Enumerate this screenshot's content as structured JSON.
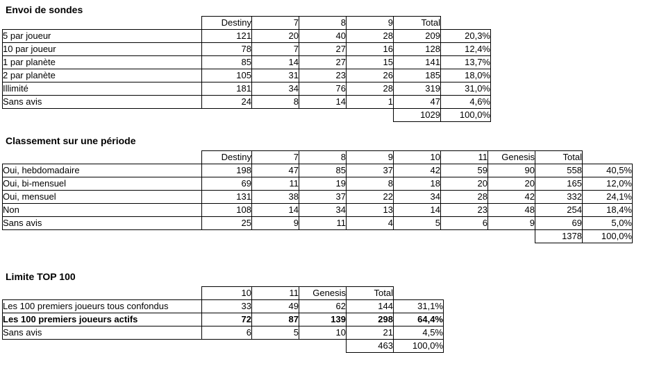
{
  "page": {
    "background_color": "#ffffff",
    "text_color": "#000000",
    "border_color": "#000000"
  },
  "tables": [
    {
      "title": "Envoi de sondes",
      "headers": [
        "Destiny",
        "7",
        "8",
        "9",
        "Total"
      ],
      "rows": [
        {
          "label": "5 par joueur",
          "values": [
            "121",
            "20",
            "40",
            "28",
            "209"
          ],
          "pct": "20,3%",
          "bold": false
        },
        {
          "label": "10 par joueur",
          "values": [
            "78",
            "7",
            "27",
            "16",
            "128"
          ],
          "pct": "12,4%",
          "bold": false
        },
        {
          "label": "1 par planète",
          "values": [
            "85",
            "14",
            "27",
            "15",
            "141"
          ],
          "pct": "13,7%",
          "bold": false
        },
        {
          "label": "2 par planète",
          "values": [
            "105",
            "31",
            "23",
            "26",
            "185"
          ],
          "pct": "18,0%",
          "bold": false
        },
        {
          "label": "Illimité",
          "values": [
            "181",
            "34",
            "76",
            "28",
            "319"
          ],
          "pct": "31,0%",
          "bold": false
        },
        {
          "label": "Sans avis",
          "values": [
            "24",
            "8",
            "14",
            "1",
            "47"
          ],
          "pct": "4,6%",
          "bold": false
        }
      ],
      "footer": {
        "total": "1029",
        "pct": "100,0%"
      }
    },
    {
      "title": "Classement sur une période",
      "headers": [
        "Destiny",
        "7",
        "8",
        "9",
        "10",
        "11",
        "Genesis",
        "Total"
      ],
      "rows": [
        {
          "label": "Oui, hebdomadaire",
          "values": [
            "198",
            "47",
            "85",
            "37",
            "42",
            "59",
            "90",
            "558"
          ],
          "pct": "40,5%",
          "bold": false
        },
        {
          "label": "Oui, bi-mensuel",
          "values": [
            "69",
            "11",
            "19",
            "8",
            "18",
            "20",
            "20",
            "165"
          ],
          "pct": "12,0%",
          "bold": false
        },
        {
          "label": "Oui, mensuel",
          "values": [
            "131",
            "38",
            "37",
            "22",
            "34",
            "28",
            "42",
            "332"
          ],
          "pct": "24,1%",
          "bold": false
        },
        {
          "label": "Non",
          "values": [
            "108",
            "14",
            "34",
            "13",
            "14",
            "23",
            "48",
            "254"
          ],
          "pct": "18,4%",
          "bold": false
        },
        {
          "label": "Sans avis",
          "values": [
            "25",
            "9",
            "11",
            "4",
            "5",
            "6",
            "9",
            "69"
          ],
          "pct": "5,0%",
          "bold": false
        }
      ],
      "footer": {
        "total": "1378",
        "pct": "100,0%"
      }
    },
    {
      "title": "Limite TOP 100",
      "headers": [
        "10",
        "11",
        "Genesis",
        "Total"
      ],
      "rows": [
        {
          "label": "Les 100 premiers joueurs tous confondus",
          "values": [
            "33",
            "49",
            "62",
            "144"
          ],
          "pct": "31,1%",
          "bold": false
        },
        {
          "label": "Les 100 premiers joueurs actifs",
          "values": [
            "72",
            "87",
            "139",
            "298"
          ],
          "pct": "64,4%",
          "bold": true
        },
        {
          "label": "Sans avis",
          "values": [
            "6",
            "5",
            "10",
            "21"
          ],
          "pct": "4,5%",
          "bold": false
        }
      ],
      "footer": {
        "total": "463",
        "pct": "100,0%"
      }
    }
  ]
}
